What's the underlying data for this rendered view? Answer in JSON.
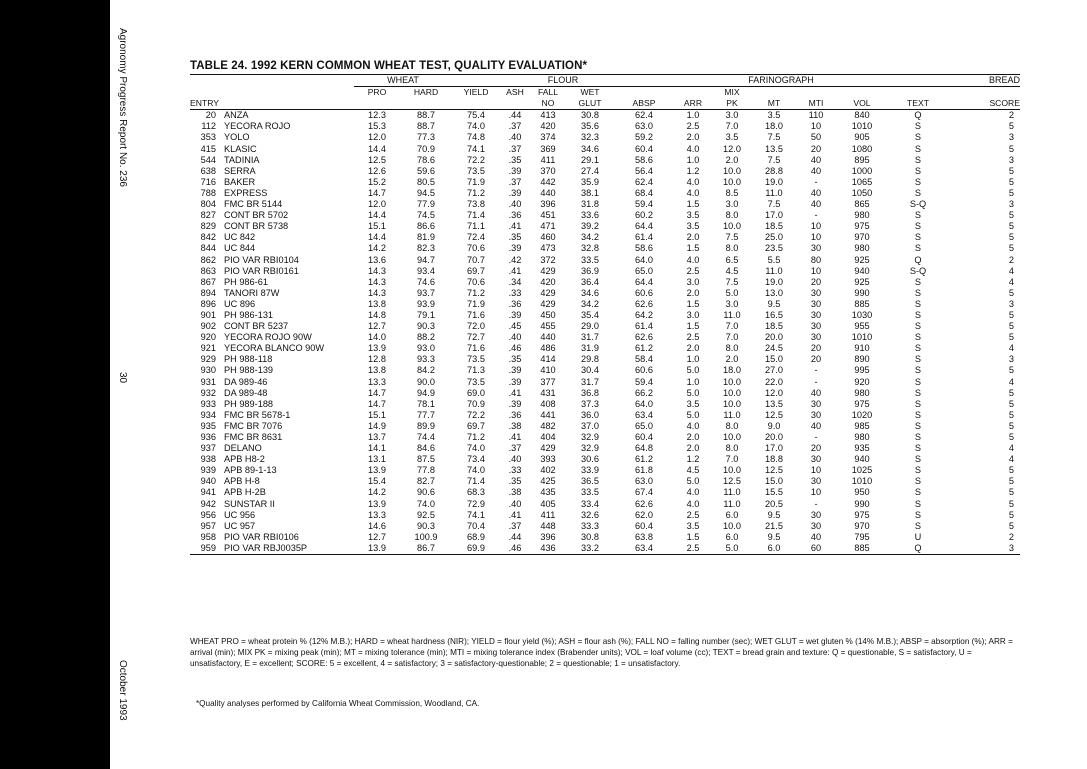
{
  "side": {
    "top_text": "Agronomy Progress Report No. 236",
    "page_number": "30",
    "date": "October 1993"
  },
  "title": "TABLE 24. 1992 KERN COMMON WHEAT TEST, QUALITY EVALUATION*",
  "groups": {
    "wheat": "WHEAT",
    "flour": "FLOUR",
    "farinograph": "FARINOGRAPH",
    "bread": "BREAD"
  },
  "header2": {
    "pro": "PRO",
    "hard": "HARD",
    "yield": "YIELD",
    "ash": "ASH",
    "fall": "FALL",
    "wet": "WET",
    "mix": "MIX"
  },
  "header3": {
    "entry": "ENTRY",
    "no": "NO",
    "glut": "GLUT",
    "absp": "ABSP",
    "arr": "ARR",
    "pk": "PK",
    "mt": "MT",
    "mti": "MTI",
    "vol": "VOL",
    "text": "TEXT",
    "score": "SCORE"
  },
  "rows": [
    [
      "20",
      "ANZA",
      "12.3",
      "88.7",
      "75.4",
      ".44",
      "413",
      "30.8",
      "62.4",
      "1.0",
      "3.0",
      "3.5",
      "110",
      "840",
      "Q",
      "2"
    ],
    [
      "112",
      "YECORA ROJO",
      "15.3",
      "88.7",
      "74.0",
      ".37",
      "420",
      "35.6",
      "63.0",
      "2.5",
      "7.0",
      "18.0",
      "10",
      "1010",
      "S",
      "5"
    ],
    [
      "353",
      "YOLO",
      "12.0",
      "77.3",
      "74.8",
      ".40",
      "374",
      "32.3",
      "59.2",
      "2.0",
      "3.5",
      "7.5",
      "50",
      "905",
      "S",
      "3"
    ],
    [
      "415",
      "KLASIC",
      "14.4",
      "70.9",
      "74.1",
      ".37",
      "369",
      "34.6",
      "60.4",
      "4.0",
      "12.0",
      "13.5",
      "20",
      "1080",
      "S",
      "5"
    ],
    [
      "544",
      "TADINIA",
      "12.5",
      "78.6",
      "72.2",
      ".35",
      "411",
      "29.1",
      "58.6",
      "1.0",
      "2.0",
      "7.5",
      "40",
      "895",
      "S",
      "3"
    ],
    [
      "638",
      "SERRA",
      "12.6",
      "59.6",
      "73.5",
      ".39",
      "370",
      "27.4",
      "56.4",
      "1.2",
      "10.0",
      "28.8",
      "40",
      "1000",
      "S",
      "5"
    ],
    [
      "716",
      "BAKER",
      "15.2",
      "80.5",
      "71.9",
      ".37",
      "442",
      "35.9",
      "62.4",
      "4.0",
      "10.0",
      "19.0",
      "-",
      "1065",
      "S",
      "5"
    ],
    [
      "788",
      "EXPRESS",
      "14.7",
      "94.5",
      "71.2",
      ".39",
      "440",
      "38.1",
      "68.4",
      "4.0",
      "8.5",
      "11.0",
      "40",
      "1050",
      "S",
      "5"
    ],
    [
      "804",
      "FMC BR 5144",
      "12.0",
      "77.9",
      "73.8",
      ".40",
      "396",
      "31.8",
      "59.4",
      "1.5",
      "3.0",
      "7.5",
      "40",
      "865",
      "S-Q",
      "3"
    ],
    [
      "827",
      "CONT BR 5702",
      "14.4",
      "74.5",
      "71.4",
      ".36",
      "451",
      "33.6",
      "60.2",
      "3.5",
      "8.0",
      "17.0",
      "-",
      "980",
      "S",
      "5"
    ],
    [
      "829",
      "CONT BR 5738",
      "15.1",
      "86.6",
      "71.1",
      ".41",
      "471",
      "39.2",
      "64.4",
      "3.5",
      "10.0",
      "18.5",
      "10",
      "975",
      "S",
      "5"
    ],
    [
      "842",
      "UC 842",
      "14.4",
      "81.9",
      "72.4",
      ".35",
      "460",
      "34.2",
      "61.4",
      "2.0",
      "7.5",
      "25.0",
      "10",
      "970",
      "S",
      "5"
    ],
    [
      "844",
      "UC 844",
      "14.2",
      "82.3",
      "70.6",
      ".39",
      "473",
      "32.8",
      "58.6",
      "1.5",
      "8.0",
      "23.5",
      "30",
      "980",
      "S",
      "5"
    ],
    [
      "862",
      "PIO VAR RBI0104",
      "13.6",
      "94.7",
      "70.7",
      ".42",
      "372",
      "33.5",
      "64.0",
      "4.0",
      "6.5",
      "5.5",
      "80",
      "925",
      "Q",
      "2"
    ],
    [
      "863",
      "PIO VAR RBI0161",
      "14.3",
      "93.4",
      "69.7",
      ".41",
      "429",
      "36.9",
      "65.0",
      "2.5",
      "4.5",
      "11.0",
      "10",
      "940",
      "S-Q",
      "4"
    ],
    [
      "867",
      "PH 986-61",
      "14.3",
      "74.6",
      "70.6",
      ".34",
      "420",
      "36.4",
      "64.4",
      "3.0",
      "7.5",
      "19.0",
      "20",
      "925",
      "S",
      "4"
    ],
    [
      "894",
      "TANORI 87W",
      "14.3",
      "93.7",
      "71.2",
      ".33",
      "429",
      "34.6",
      "60.6",
      "2.0",
      "5.0",
      "13.0",
      "30",
      "990",
      "S",
      "5"
    ],
    [
      "896",
      "UC 896",
      "13.8",
      "93.9",
      "71.9",
      ".36",
      "429",
      "34.2",
      "62.6",
      "1.5",
      "3.0",
      "9.5",
      "30",
      "885",
      "S",
      "3"
    ],
    [
      "901",
      "PH 986-131",
      "14.8",
      "79.1",
      "71.6",
      ".39",
      "450",
      "35.4",
      "64.2",
      "3.0",
      "11.0",
      "16.5",
      "30",
      "1030",
      "S",
      "5"
    ],
    [
      "902",
      "CONT BR 5237",
      "12.7",
      "90.3",
      "72.0",
      ".45",
      "455",
      "29.0",
      "61.4",
      "1.5",
      "7.0",
      "18.5",
      "30",
      "955",
      "S",
      "5"
    ],
    [
      "920",
      "YECORA ROJO 90W",
      "14.0",
      "88.2",
      "72.7",
      ".40",
      "440",
      "31.7",
      "62.6",
      "2.5",
      "7.0",
      "20.0",
      "30",
      "1010",
      "S",
      "5"
    ],
    [
      "921",
      "YECORA BLANCO 90W",
      "13.9",
      "93.0",
      "71.6",
      ".46",
      "486",
      "31.9",
      "61.2",
      "2.0",
      "8.0",
      "24.5",
      "20",
      "910",
      "S",
      "4"
    ],
    [
      "929",
      "PH 988-118",
      "12.8",
      "93.3",
      "73.5",
      ".35",
      "414",
      "29.8",
      "58.4",
      "1.0",
      "2.0",
      "15.0",
      "20",
      "890",
      "S",
      "3"
    ],
    [
      "930",
      "PH 988-139",
      "13.8",
      "84.2",
      "71.3",
      ".39",
      "410",
      "30.4",
      "60.6",
      "5.0",
      "18.0",
      "27.0",
      "-",
      "995",
      "S",
      "5"
    ],
    [
      "931",
      "DA 989-46",
      "13.3",
      "90.0",
      "73.5",
      ".39",
      "377",
      "31.7",
      "59.4",
      "1.0",
      "10.0",
      "22.0",
      "-",
      "920",
      "S",
      "4"
    ],
    [
      "932",
      "DA 989-48",
      "14.7",
      "94.9",
      "69.0",
      ".41",
      "431",
      "36.8",
      "66.2",
      "5.0",
      "10.0",
      "12.0",
      "40",
      "980",
      "S",
      "5"
    ],
    [
      "933",
      "PH 989-188",
      "14.7",
      "78.1",
      "70.9",
      ".39",
      "408",
      "37.3",
      "64.0",
      "3.5",
      "10.0",
      "13.5",
      "30",
      "975",
      "S",
      "5"
    ],
    [
      "934",
      "FMC BR 5678-1",
      "15.1",
      "77.7",
      "72.2",
      ".36",
      "441",
      "36.0",
      "63.4",
      "5.0",
      "11.0",
      "12.5",
      "30",
      "1020",
      "S",
      "5"
    ],
    [
      "935",
      "FMC BR 7076",
      "14.9",
      "89.9",
      "69.7",
      ".38",
      "482",
      "37.0",
      "65.0",
      "4.0",
      "8.0",
      "9.0",
      "40",
      "985",
      "S",
      "5"
    ],
    [
      "936",
      "FMC BR 8631",
      "13.7",
      "74.4",
      "71.2",
      ".41",
      "404",
      "32.9",
      "60.4",
      "2.0",
      "10.0",
      "20.0",
      "-",
      "980",
      "S",
      "5"
    ],
    [
      "937",
      "DELANO",
      "14.1",
      "84.6",
      "74.0",
      ".37",
      "429",
      "32.9",
      "64.8",
      "2.0",
      "8.0",
      "17.0",
      "20",
      "935",
      "S",
      "4"
    ],
    [
      "938",
      "APB H8-2",
      "13.1",
      "87.5",
      "73.4",
      ".40",
      "393",
      "30.6",
      "61.2",
      "1.2",
      "7.0",
      "18.8",
      "30",
      "940",
      "S",
      "4"
    ],
    [
      "939",
      "APB 89-1-13",
      "13.9",
      "77.8",
      "74.0",
      ".33",
      "402",
      "33.9",
      "61.8",
      "4.5",
      "10.0",
      "12.5",
      "10",
      "1025",
      "S",
      "5"
    ],
    [
      "940",
      "APB H-8",
      "15.4",
      "82.7",
      "71.4",
      ".35",
      "425",
      "36.5",
      "63.0",
      "5.0",
      "12.5",
      "15.0",
      "30",
      "1010",
      "S",
      "5"
    ],
    [
      "941",
      "APB H-2B",
      "14.2",
      "90.6",
      "68.3",
      ".38",
      "435",
      "33.5",
      "67.4",
      "4.0",
      "11.0",
      "15.5",
      "10",
      "950",
      "S",
      "5"
    ],
    [
      "942",
      "SUNSTAR II",
      "13.9",
      "74.0",
      "72.9",
      ".40",
      "405",
      "33.4",
      "62.6",
      "4.0",
      "11.0",
      "20.5",
      "-",
      "990",
      "S",
      "5"
    ],
    [
      "956",
      "UC 956",
      "13.3",
      "92.5",
      "74.1",
      ".41",
      "411",
      "32.6",
      "62.0",
      "2.5",
      "6.0",
      "9.5",
      "30",
      "975",
      "S",
      "5"
    ],
    [
      "957",
      "UC 957",
      "14.6",
      "90.3",
      "70.4",
      ".37",
      "448",
      "33.3",
      "60.4",
      "3.5",
      "10.0",
      "21.5",
      "30",
      "970",
      "S",
      "5"
    ],
    [
      "958",
      "PIO VAR RBI0106",
      "12.7",
      "100.9",
      "68.9",
      ".44",
      "396",
      "30.8",
      "63.8",
      "1.5",
      "6.0",
      "9.5",
      "40",
      "795",
      "U",
      "2"
    ],
    [
      "959",
      "PIO VAR RBJ0035P",
      "13.9",
      "86.7",
      "69.9",
      ".46",
      "436",
      "33.2",
      "63.4",
      "2.5",
      "5.0",
      "6.0",
      "60",
      "885",
      "Q",
      "3"
    ]
  ],
  "notes": "WHEAT PRO = wheat protein % (12% M.B.); HARD = wheat hardness (NIR); YIELD = flour yield (%); ASH = flour ash (%); FALL NO = falling number (sec); WET GLUT = wet gluten % (14% M.B.); ABSP = absorption (%); ARR = arrival (min); MIX PK = mixing peak (min); MT = mixing tolerance (min); MTI = mixing tolerance index (Brabender units); VOL = loaf volume (cc); TEXT = bread grain and texture: Q = questionable, S = satisfactory, U = unsatisfactory, E = excellent; SCORE: 5 = excellent, 4 = satisfactory; 3 = satisfactory-questionable; 2 = questionable; 1 = unsatisfactory.",
  "footnote": "*Quality analyses performed by California Wheat Commission, Woodland, CA."
}
